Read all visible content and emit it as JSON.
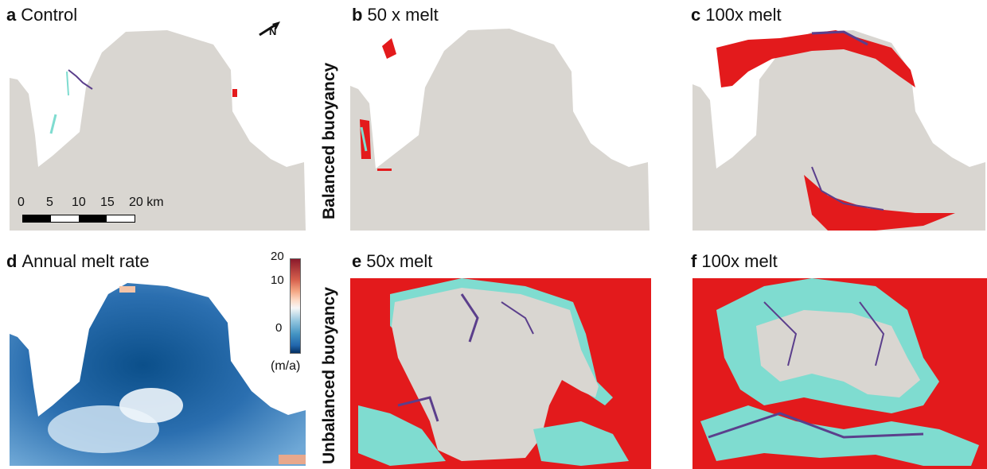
{
  "panels": {
    "a": {
      "letter": "a",
      "title": "Control"
    },
    "b": {
      "letter": "b",
      "title": "50 x melt"
    },
    "c": {
      "letter": "c",
      "title": "100x melt"
    },
    "d": {
      "letter": "d",
      "title": "Annual melt rate"
    },
    "e": {
      "letter": "e",
      "title": "50x melt"
    },
    "f": {
      "letter": "f",
      "title": "100x melt"
    }
  },
  "row_labels": {
    "top": "Balanced buoyancy",
    "bottom": "Unbalanced buoyancy"
  },
  "north_arrow": {
    "label": "N"
  },
  "scale_bar": {
    "ticks": [
      "0",
      "5",
      "10",
      "15",
      "20 km"
    ]
  },
  "colorbar": {
    "ticks": [
      "20",
      "10",
      "0"
    ],
    "unit": "(m/a)"
  },
  "colors": {
    "ice": "#d9d6d1",
    "red": "#e31a1c",
    "cyan": "#7fdcd0",
    "purple": "#5b3f8c",
    "deep_blue": "#0b4f8a"
  }
}
